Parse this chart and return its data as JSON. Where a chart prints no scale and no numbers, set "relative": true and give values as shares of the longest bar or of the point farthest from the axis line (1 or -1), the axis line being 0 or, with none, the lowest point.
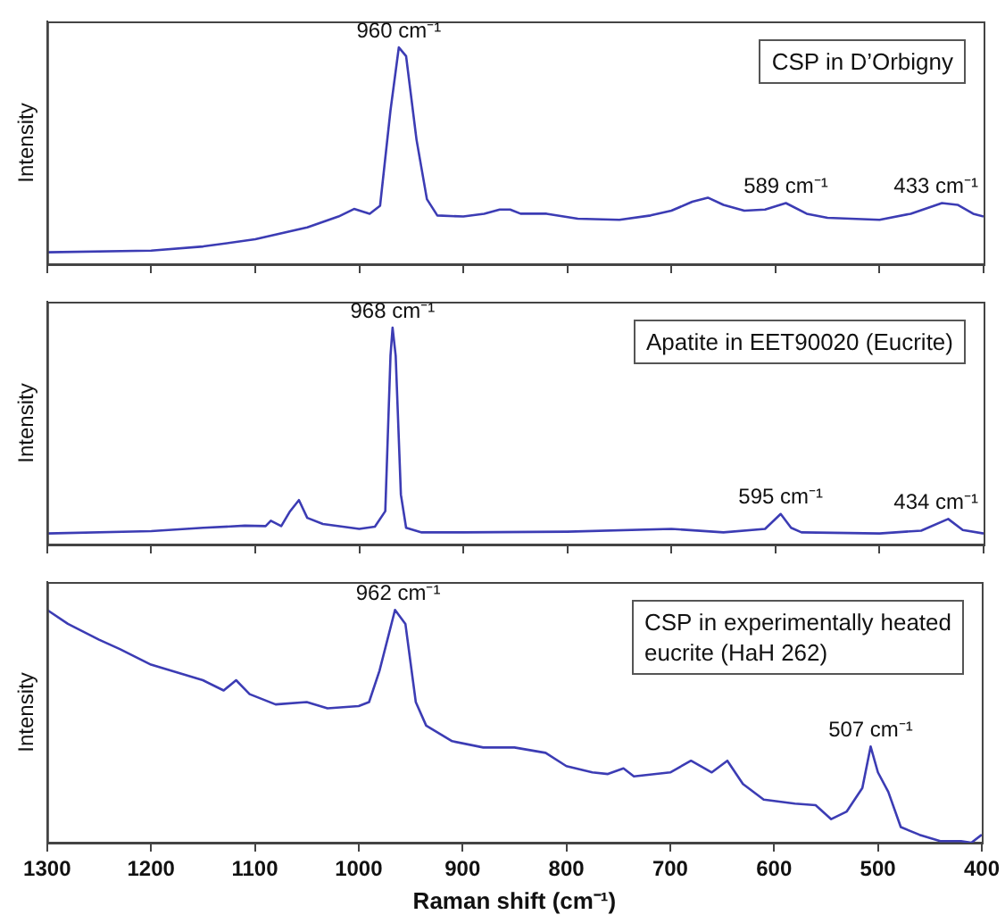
{
  "chart_data": [
    {
      "type": "line",
      "title": "CSP in D’Orbigny",
      "ylabel": "Intensity",
      "relative": true,
      "xlim": [
        1300,
        400
      ],
      "xticks": [
        1300,
        1200,
        1100,
        1000,
        900,
        800,
        700,
        600,
        500,
        400
      ],
      "tick_labels": false,
      "grid": false,
      "legend": false,
      "marker": "none",
      "line_style": "solid",
      "x": [
        1300,
        1200,
        1150,
        1100,
        1050,
        1020,
        1005,
        990,
        980,
        970,
        962,
        955,
        945,
        935,
        925,
        900,
        880,
        865,
        855,
        845,
        820,
        790,
        750,
        720,
        700,
        680,
        665,
        650,
        630,
        610,
        590,
        570,
        550,
        500,
        470,
        440,
        425,
        410,
        400
      ],
      "series": [
        {
          "color": "#3c3cb4",
          "values": [
            0.055,
            0.063,
            0.082,
            0.115,
            0.17,
            0.22,
            0.255,
            0.233,
            0.27,
            0.71,
            1.0,
            0.96,
            0.575,
            0.3,
            0.225,
            0.22,
            0.233,
            0.252,
            0.252,
            0.233,
            0.233,
            0.21,
            0.205,
            0.225,
            0.247,
            0.288,
            0.307,
            0.274,
            0.247,
            0.252,
            0.282,
            0.233,
            0.214,
            0.205,
            0.233,
            0.282,
            0.274,
            0.233,
            0.22
          ]
        }
      ],
      "annotations": [
        {
          "text": "960 cm⁻¹",
          "x": 962,
          "y": 1.0
        },
        {
          "text": "589 cm⁻¹",
          "x": 590,
          "y": 0.282
        },
        {
          "text": "433 cm⁻¹",
          "x": 440,
          "y": 0.282
        }
      ]
    },
    {
      "type": "line",
      "title": "Apatite in EET90020 (Eucrite)",
      "ylabel": "Intensity",
      "relative": true,
      "xlim": [
        1300,
        400
      ],
      "xticks": [
        1300,
        1200,
        1100,
        1000,
        900,
        800,
        700,
        600,
        500,
        400
      ],
      "tick_labels": false,
      "grid": false,
      "legend": false,
      "marker": "none",
      "line_style": "solid",
      "x": [
        1300,
        1200,
        1150,
        1110,
        1090,
        1085,
        1075,
        1067,
        1058,
        1050,
        1035,
        1000,
        985,
        975,
        970,
        968,
        965,
        960,
        955,
        940,
        900,
        800,
        700,
        650,
        610,
        595,
        585,
        575,
        500,
        460,
        434,
        420,
        400
      ],
      "series": [
        {
          "color": "#3c3cb4",
          "values": [
            0.051,
            0.062,
            0.077,
            0.087,
            0.085,
            0.11,
            0.085,
            0.15,
            0.205,
            0.123,
            0.095,
            0.072,
            0.082,
            0.154,
            0.87,
            1.0,
            0.87,
            0.23,
            0.077,
            0.056,
            0.056,
            0.059,
            0.072,
            0.056,
            0.072,
            0.141,
            0.077,
            0.056,
            0.051,
            0.064,
            0.118,
            0.067,
            0.051
          ]
        }
      ],
      "annotations": [
        {
          "text": "968 cm⁻¹",
          "x": 968,
          "y": 1.0
        },
        {
          "text": "595 cm⁻¹",
          "x": 595,
          "y": 0.141
        },
        {
          "text": "434 cm⁻¹",
          "x": 434,
          "y": 0.118
        }
      ]
    },
    {
      "type": "line",
      "title": "CSP in experimentally heated eucrite (HaH 262)",
      "ylabel": "Intensity",
      "xlabel": "Raman shift (cm⁻¹)",
      "relative": true,
      "xlim": [
        1300,
        400
      ],
      "xticks": [
        1300,
        1200,
        1100,
        1000,
        900,
        800,
        700,
        600,
        500,
        400
      ],
      "tick_labels": "x",
      "grid": false,
      "legend": false,
      "marker": "none",
      "line_style": "solid",
      "x": [
        1300,
        1280,
        1250,
        1230,
        1200,
        1180,
        1150,
        1130,
        1118,
        1105,
        1080,
        1050,
        1030,
        1000,
        990,
        980,
        965,
        955,
        945,
        935,
        910,
        880,
        850,
        820,
        800,
        775,
        760,
        745,
        735,
        700,
        680,
        660,
        645,
        630,
        610,
        580,
        560,
        545,
        530,
        515,
        507,
        500,
        490,
        478,
        460,
        440,
        420,
        410,
        400
      ],
      "series": [
        {
          "color": "#3c3cb4",
          "values": [
            1.0,
            0.94,
            0.872,
            0.832,
            0.765,
            0.738,
            0.698,
            0.654,
            0.698,
            0.638,
            0.594,
            0.604,
            0.577,
            0.587,
            0.604,
            0.738,
            1.0,
            0.94,
            0.604,
            0.503,
            0.436,
            0.409,
            0.409,
            0.386,
            0.329,
            0.302,
            0.295,
            0.319,
            0.285,
            0.302,
            0.352,
            0.302,
            0.352,
            0.252,
            0.185,
            0.168,
            0.161,
            0.101,
            0.134,
            0.235,
            0.413,
            0.302,
            0.218,
            0.067,
            0.034,
            0.007,
            0.007,
            0,
            0.034
          ]
        }
      ],
      "annotations": [
        {
          "text": "962 cm⁻¹",
          "x": 962,
          "y": 1.0
        },
        {
          "text": "507 cm⁻¹",
          "x": 507,
          "y": 0.413
        }
      ]
    }
  ]
}
